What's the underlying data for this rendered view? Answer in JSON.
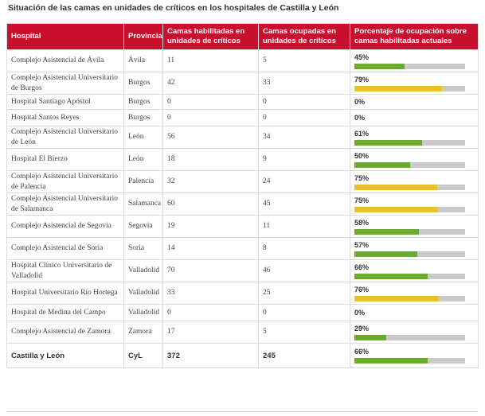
{
  "title": "Situación de las camas en unidades de críticos en los hospitales de Castilla y León",
  "colors": {
    "header_bg": "#c8102e",
    "green": "#6aaa2f",
    "yellow": "#e8c22c",
    "track": "#c9c9c9"
  },
  "headers": {
    "hospital": "Hospital",
    "provincia": "Provincia",
    "habilitadas": "Camas habilitadas en unidades de críticos",
    "ocupadas": "Camas ocupadas en unidades de críticos",
    "porcentaje": "Porcentaje de ocupación sobre camas habilitadas actuales"
  },
  "rows": [
    {
      "hospital": "Complejo Asistencial de Ávila",
      "provincia": "Ávila",
      "habilitadas": "11",
      "ocupadas": "5",
      "pct_label": "45%",
      "pct": 45,
      "level": "green"
    },
    {
      "hospital": "Complejo Asistencial Universitario de Burgos",
      "provincia": "Burgos",
      "habilitadas": "42",
      "ocupadas": "33",
      "pct_label": "79%",
      "pct": 79,
      "level": "yellow"
    },
    {
      "hospital": "Hospital Santiago Apóstol",
      "provincia": "Burgos",
      "habilitadas": "0",
      "ocupadas": "0",
      "pct_label": "0%",
      "pct": 0,
      "level": "none"
    },
    {
      "hospital": "Hospital Santos Reyes",
      "provincia": "Burgos",
      "habilitadas": "0",
      "ocupadas": "0",
      "pct_label": "0%",
      "pct": 0,
      "level": "none"
    },
    {
      "hospital": "Complejo Asistencial Universitario de León",
      "provincia": "León",
      "habilitadas": "56",
      "ocupadas": "34",
      "pct_label": "61%",
      "pct": 61,
      "level": "green"
    },
    {
      "hospital": "Hospital El Bierzo",
      "provincia": "León",
      "habilitadas": "18",
      "ocupadas": "9",
      "pct_label": "50%",
      "pct": 50,
      "level": "green"
    },
    {
      "hospital": "Complejo Asistencial Universitario de Palencia",
      "provincia": "Palencia",
      "habilitadas": "32",
      "ocupadas": "24",
      "pct_label": "75%",
      "pct": 75,
      "level": "yellow"
    },
    {
      "hospital": "Complejo Asistencial Universitario de Salamanca",
      "provincia": "Salamanca",
      "habilitadas": "60",
      "ocupadas": "45",
      "pct_label": "75%",
      "pct": 75,
      "level": "yellow"
    },
    {
      "hospital": "Complejo Asistencial de Segovia",
      "provincia": "Segovia",
      "habilitadas": "19",
      "ocupadas": "11",
      "pct_label": "58%",
      "pct": 58,
      "level": "green"
    },
    {
      "hospital": "Complejo Asistencial de Soria",
      "provincia": "Soria",
      "habilitadas": "14",
      "ocupadas": "8",
      "pct_label": "57%",
      "pct": 57,
      "level": "green"
    },
    {
      "hospital": "Hospital Clínico Universitario de Valladolid",
      "provincia": "Valladolid",
      "habilitadas": "70",
      "ocupadas": "46",
      "pct_label": "66%",
      "pct": 66,
      "level": "green"
    },
    {
      "hospital": "Hospital Universitario Río Hortega",
      "provincia": "Valladolid",
      "habilitadas": "33",
      "ocupadas": "25",
      "pct_label": "76%",
      "pct": 76,
      "level": "yellow"
    },
    {
      "hospital": "Hospital de Medina del Campo",
      "provincia": "Valladolid",
      "habilitadas": "0",
      "ocupadas": "0",
      "pct_label": "0%",
      "pct": 0,
      "level": "none"
    },
    {
      "hospital": "Complejo Asistencial de Zamora",
      "provincia": "Zamora",
      "habilitadas": "17",
      "ocupadas": "5",
      "pct_label": "29%",
      "pct": 29,
      "level": "green"
    }
  ],
  "total": {
    "hospital": "Castilla y León",
    "provincia": "CyL",
    "habilitadas": "372",
    "ocupadas": "245",
    "pct_label": "66%",
    "pct": 66,
    "level": "green"
  }
}
